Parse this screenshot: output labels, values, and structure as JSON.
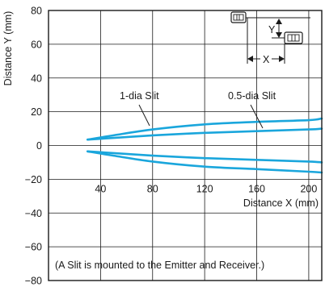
{
  "chart_data": {
    "type": "line",
    "xlabel": "Distance X (mm)",
    "ylabel": "Distance Y (mm)",
    "xlim": [
      0,
      210
    ],
    "ylim": [
      -80,
      80
    ],
    "x_ticks": [
      40,
      80,
      120,
      160,
      200
    ],
    "y_ticks": [
      80,
      60,
      40,
      20,
      0,
      -20,
      -40,
      -60,
      -80
    ],
    "grid": true,
    "line_color": "#1aa6dc",
    "series": [
      {
        "name": "1-dia Slit",
        "x": [
          30,
          50,
          80,
          120,
          160,
          200,
          210
        ],
        "upper": [
          3.5,
          6,
          9.5,
          12.5,
          14,
          15,
          16
        ],
        "lower": [
          -3.5,
          -6,
          -9.5,
          -12.5,
          -14,
          -15.5,
          -16
        ]
      },
      {
        "name": "0.5-dia Slit",
        "x": [
          30,
          50,
          80,
          120,
          160,
          200,
          210
        ],
        "upper": [
          3.5,
          4.5,
          6,
          7.5,
          8.5,
          9.5,
          10
        ],
        "lower": [
          -3.5,
          -4.5,
          -6,
          -7.5,
          -8.5,
          -9.5,
          -10
        ]
      }
    ],
    "annotations": {
      "slit1_label": "1-dia Slit",
      "slit05_label": "0.5-dia Slit",
      "note": "(A Slit is mounted to the Emitter and Receiver.)",
      "inset_x": "X",
      "inset_y": "Y"
    }
  }
}
